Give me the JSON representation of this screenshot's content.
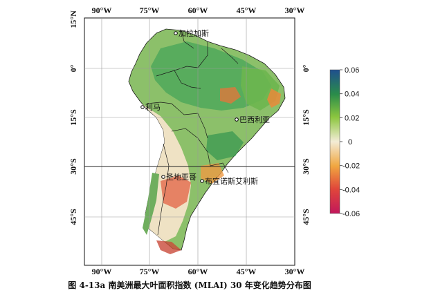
{
  "caption": "图 4-13a 南美洲最大叶面积指数 (MLAI) 30 年变化趋势分布图",
  "map": {
    "lon_labels": [
      "90°W",
      "75°W",
      "60°W",
      "45°W",
      "30°W"
    ],
    "lat_labels": [
      "15°N",
      "0°",
      "15°S",
      "30°S",
      "45°S"
    ],
    "cities": [
      {
        "name": "加拉加斯",
        "lon": -66.9,
        "lat": 10.5
      },
      {
        "name": "利马",
        "lon": -77.0,
        "lat": -12.0
      },
      {
        "name": "巴西利亚",
        "lon": -47.9,
        "lat": -15.8
      },
      {
        "name": "圣地亚哥",
        "lon": -70.6,
        "lat": -33.4
      },
      {
        "name": "布宜诺斯艾利斯",
        "lon": -58.4,
        "lat": -34.6
      }
    ]
  },
  "colorbar": {
    "labels": [
      "0.06",
      "0.04",
      "0.02",
      "0",
      "-0.02",
      "-0.04",
      "-0.06"
    ],
    "values": [
      0.06,
      0.04,
      0.02,
      0,
      -0.02,
      -0.04,
      -0.06
    ],
    "colors": [
      "#1f4f8f",
      "#2a8c4a",
      "#8cc63f",
      "#f3ecd6",
      "#f0a640",
      "#e0463a",
      "#c2185b"
    ]
  }
}
